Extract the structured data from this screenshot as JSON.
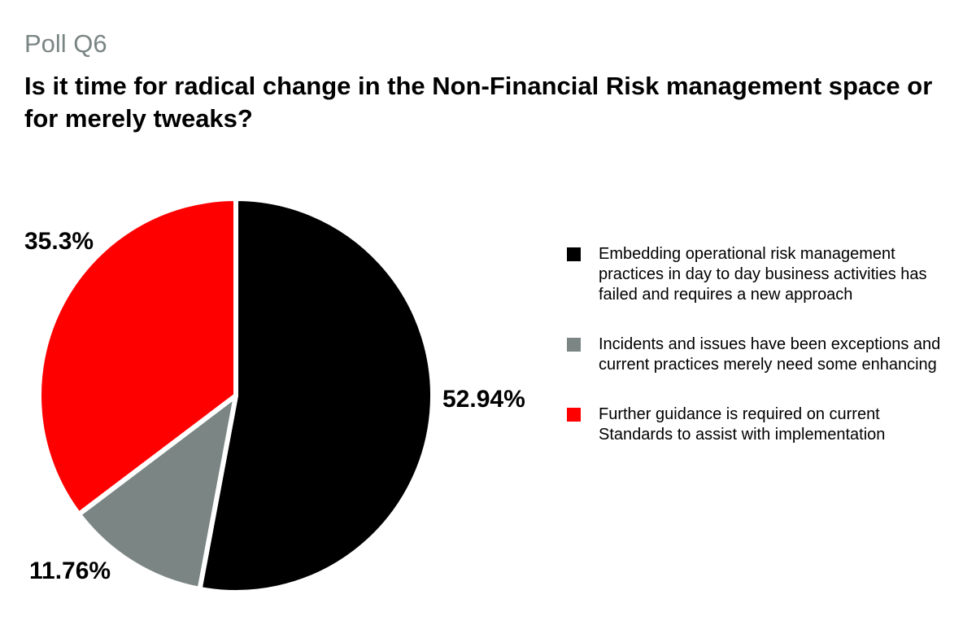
{
  "header": {
    "kicker": "Poll Q6",
    "title": "Is it time for radical change in the Non-Financial Risk management space or for merely tweaks?"
  },
  "chart_data": {
    "type": "pie",
    "start_angle_deg": 0,
    "direction": "clockwise",
    "slices": [
      {
        "label": "Embedding operational risk management practices in day to day business activities has failed and requires a new approach",
        "value": 52.94,
        "display": "52.94%",
        "color": "#000000"
      },
      {
        "label": "Incidents and issues have been exceptions and current practices merely need some enhancing",
        "value": 11.76,
        "display": "11.76%",
        "color": "#7a8584"
      },
      {
        "label": "Further guidance is required on current Standards to assist with implementation",
        "value": 35.3,
        "display": "35.3%",
        "color": "#ff0000"
      }
    ],
    "legend_position": "right"
  }
}
